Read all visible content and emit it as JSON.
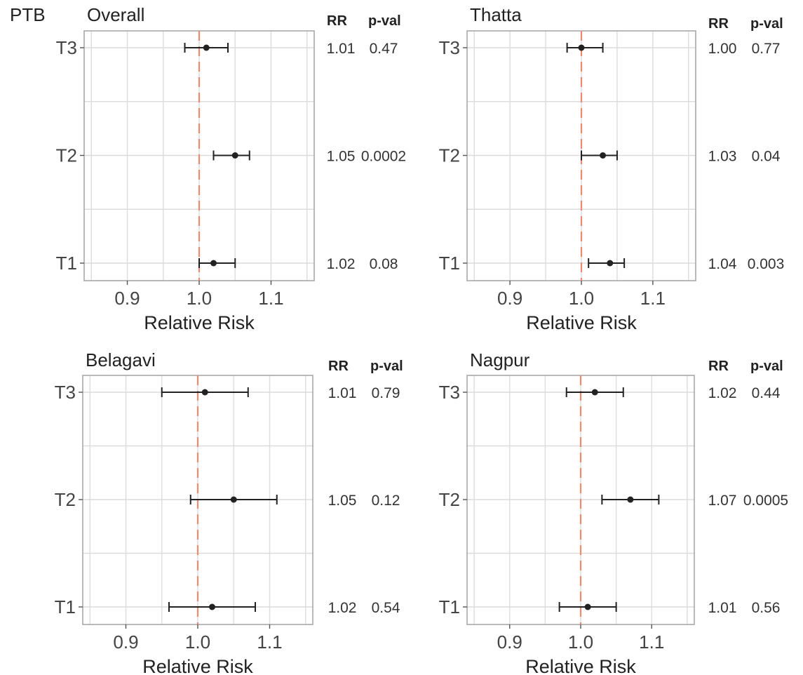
{
  "figure_label": "PTB",
  "chart_data": [
    {
      "type": "forest",
      "title": "Overall",
      "xlabel": "Relative Risk",
      "xlim": [
        0.84,
        1.16
      ],
      "xticks": [
        0.9,
        1.0,
        1.1
      ],
      "xtick_labels": [
        "0.9",
        "1.0",
        "1.1"
      ],
      "reference_line": 1.0,
      "categories": [
        "T3",
        "T2",
        "T1"
      ],
      "col_headers": {
        "rr": "RR",
        "pval": "p-val"
      },
      "rows": [
        {
          "label": "T3",
          "estimate": 1.01,
          "lower": 0.98,
          "upper": 1.04,
          "rr_text": "1.01",
          "p_text": "0.47"
        },
        {
          "label": "T2",
          "estimate": 1.05,
          "lower": 1.02,
          "upper": 1.07,
          "rr_text": "1.05",
          "p_text": "0.0002"
        },
        {
          "label": "T1",
          "estimate": 1.02,
          "lower": 1.0,
          "upper": 1.05,
          "rr_text": "1.02",
          "p_text": "0.08"
        }
      ]
    },
    {
      "type": "forest",
      "title": "Thatta",
      "xlabel": "Relative Risk",
      "xlim": [
        0.84,
        1.16
      ],
      "xticks": [
        0.9,
        1.0,
        1.1
      ],
      "xtick_labels": [
        "0.9",
        "1.0",
        "1.1"
      ],
      "reference_line": 1.0,
      "categories": [
        "T3",
        "T2",
        "T1"
      ],
      "col_headers": {
        "rr": "RR",
        "pval": "p-val"
      },
      "rows": [
        {
          "label": "T3",
          "estimate": 1.0,
          "lower": 0.98,
          "upper": 1.03,
          "rr_text": "1.00",
          "p_text": "0.77"
        },
        {
          "label": "T2",
          "estimate": 1.03,
          "lower": 1.0,
          "upper": 1.05,
          "rr_text": "1.03",
          "p_text": "0.04"
        },
        {
          "label": "T1",
          "estimate": 1.04,
          "lower": 1.01,
          "upper": 1.06,
          "rr_text": "1.04",
          "p_text": "0.003"
        }
      ]
    },
    {
      "type": "forest",
      "title": "Belagavi",
      "xlabel": "Relative Risk",
      "xlim": [
        0.84,
        1.16
      ],
      "xticks": [
        0.9,
        1.0,
        1.1
      ],
      "xtick_labels": [
        "0.9",
        "1.0",
        "1.1"
      ],
      "reference_line": 1.0,
      "categories": [
        "T3",
        "T2",
        "T1"
      ],
      "col_headers": {
        "rr": "RR",
        "pval": "p-val"
      },
      "rows": [
        {
          "label": "T3",
          "estimate": 1.01,
          "lower": 0.95,
          "upper": 1.07,
          "rr_text": "1.01",
          "p_text": "0.79"
        },
        {
          "label": "T2",
          "estimate": 1.05,
          "lower": 0.99,
          "upper": 1.11,
          "rr_text": "1.05",
          "p_text": "0.12"
        },
        {
          "label": "T1",
          "estimate": 1.02,
          "lower": 0.96,
          "upper": 1.08,
          "rr_text": "1.02",
          "p_text": "0.54"
        }
      ]
    },
    {
      "type": "forest",
      "title": "Nagpur",
      "xlabel": "Relative Risk",
      "xlim": [
        0.84,
        1.16
      ],
      "xticks": [
        0.9,
        1.0,
        1.1
      ],
      "xtick_labels": [
        "0.9",
        "1.0",
        "1.1"
      ],
      "reference_line": 1.0,
      "categories": [
        "T3",
        "T2",
        "T1"
      ],
      "col_headers": {
        "rr": "RR",
        "pval": "p-val"
      },
      "rows": [
        {
          "label": "T3",
          "estimate": 1.02,
          "lower": 0.98,
          "upper": 1.06,
          "rr_text": "1.02",
          "p_text": "0.44"
        },
        {
          "label": "T2",
          "estimate": 1.07,
          "lower": 1.03,
          "upper": 1.11,
          "rr_text": "1.07",
          "p_text": "0.0005"
        },
        {
          "label": "T1",
          "estimate": 1.01,
          "lower": 0.97,
          "upper": 1.05,
          "rr_text": "1.01",
          "p_text": "0.56"
        }
      ]
    }
  ],
  "colors": {
    "reference_line": "#ef8a6e",
    "point": "#222222",
    "grid": "#dcdcdc",
    "frame": "#a8a8a8"
  }
}
